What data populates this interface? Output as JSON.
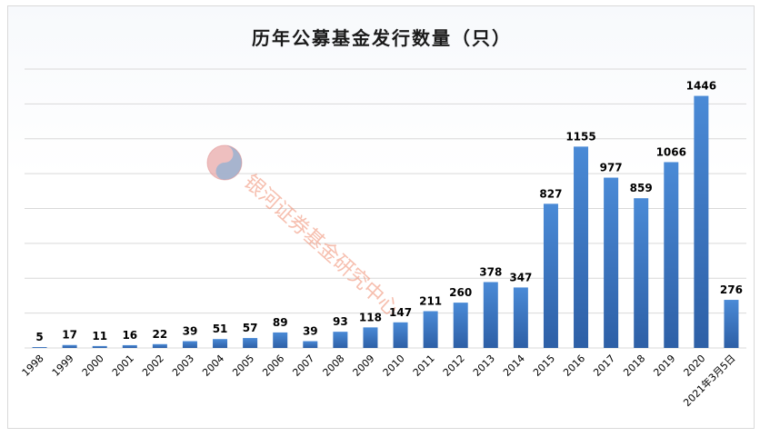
{
  "chart_data": {
    "type": "bar",
    "title": "历年公募基金发行数量（只）",
    "categories": [
      "1998",
      "1999",
      "2000",
      "2001",
      "2002",
      "2003",
      "2004",
      "2005",
      "2006",
      "2007",
      "2008",
      "2009",
      "2010",
      "2011",
      "2012",
      "2013",
      "2014",
      "2015",
      "2016",
      "2017",
      "2018",
      "2019",
      "2020",
      "2021年3月5日"
    ],
    "values": [
      5,
      17,
      11,
      16,
      22,
      39,
      51,
      57,
      89,
      39,
      93,
      118,
      147,
      211,
      260,
      378,
      347,
      827,
      1155,
      977,
      859,
      1066,
      1446,
      276
    ],
    "xlabel": "",
    "ylabel": "",
    "ylim": [
      0,
      1600
    ],
    "grid": true,
    "bar_color": "#3a78c2",
    "watermark": "银河证券基金研究中心"
  }
}
